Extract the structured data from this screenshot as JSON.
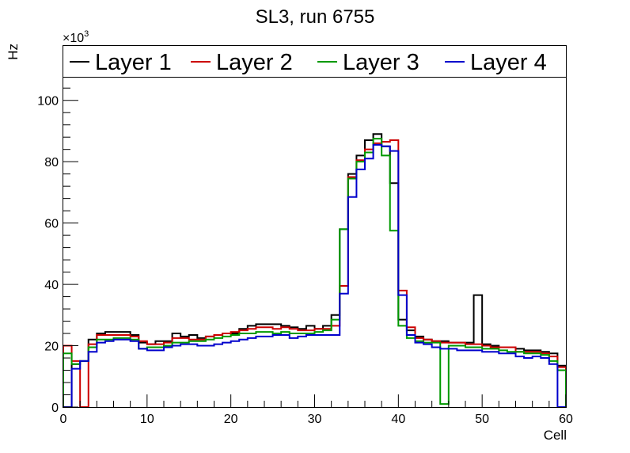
{
  "chart_data": {
    "type": "line",
    "style": "step-histogram",
    "title": "SL3, run 6755",
    "xlabel": "Cell",
    "ylabel": "Hz",
    "y_exponent_label": "×10",
    "y_exponent_power": "3",
    "xlim": [
      0,
      60
    ],
    "ylim": [
      0,
      118
    ],
    "x_ticks": [
      0,
      10,
      20,
      30,
      40,
      50,
      60
    ],
    "y_ticks": [
      0,
      20,
      40,
      60,
      80,
      100
    ],
    "legend_position": "top",
    "bin_width": 1,
    "series": [
      {
        "name": "Layer 1",
        "color": "#000000",
        "values": [
          0,
          14,
          15,
          22,
          24,
          24.5,
          24.5,
          24.5,
          23.5,
          21,
          20.5,
          21.5,
          21.5,
          24,
          23,
          23.5,
          22.5,
          23,
          23.5,
          24,
          24,
          25.5,
          26.5,
          27,
          27,
          27,
          26.5,
          26,
          25.5,
          26.5,
          25.5,
          26.5,
          30,
          58,
          76,
          82,
          87,
          89,
          85,
          73,
          28.5,
          25,
          23,
          22,
          21.5,
          21.5,
          21,
          21,
          21,
          36.5,
          20.5,
          20,
          19.5,
          19.5,
          19,
          18.5,
          18.5,
          18,
          17.5,
          13.5
        ]
      },
      {
        "name": "Layer 2",
        "color": "#cc0000",
        "values": [
          20,
          15,
          0,
          20.5,
          23.5,
          23.5,
          23.5,
          23.5,
          23,
          21.5,
          20.5,
          20.5,
          21,
          22.5,
          22.5,
          22,
          22,
          23,
          23.5,
          24,
          24.5,
          25,
          25.5,
          26,
          26,
          25.5,
          26,
          25.5,
          25,
          25,
          25.5,
          25.5,
          26.5,
          39.5,
          75,
          80.5,
          84,
          86,
          86.5,
          87,
          38,
          26,
          22.5,
          22,
          21.5,
          21,
          21,
          21,
          20.5,
          20.5,
          20,
          19.5,
          19.5,
          19.5,
          18,
          18,
          18,
          17.5,
          16.5,
          13
        ]
      },
      {
        "name": "Layer 3",
        "color": "#009900",
        "values": [
          17.5,
          14,
          15,
          19.5,
          22,
          22,
          22.5,
          22.5,
          22,
          19,
          19.5,
          19.5,
          20,
          21,
          21,
          21.5,
          21.5,
          22,
          22.5,
          23,
          23.5,
          24,
          24,
          24.5,
          24.5,
          24,
          24.5,
          24,
          24,
          24,
          24.5,
          25,
          28.5,
          58,
          74.5,
          80,
          83,
          87.5,
          82,
          57.5,
          26.5,
          22.5,
          21.5,
          21,
          21,
          1,
          20,
          20,
          19.5,
          19.5,
          19,
          19,
          18.5,
          18,
          18,
          17.5,
          17.5,
          17,
          15,
          12
        ]
      },
      {
        "name": "Layer 4",
        "color": "#0000cc",
        "values": [
          0,
          12.5,
          15,
          18,
          21,
          21.5,
          22,
          22,
          21.5,
          19,
          18.5,
          18.5,
          19.5,
          20,
          20.5,
          20.5,
          20,
          20,
          20.5,
          21,
          21.5,
          22,
          22.5,
          23,
          23,
          23.5,
          23.5,
          22.5,
          23,
          23.5,
          23.5,
          23.5,
          23.5,
          37,
          68.5,
          77.5,
          81,
          85.5,
          85,
          83.5,
          36.5,
          23.5,
          21,
          20.5,
          19.5,
          19,
          19,
          18.5,
          18.5,
          18.5,
          18,
          18,
          17.5,
          17.5,
          16.5,
          16,
          16.5,
          16,
          14,
          0
        ]
      }
    ]
  }
}
